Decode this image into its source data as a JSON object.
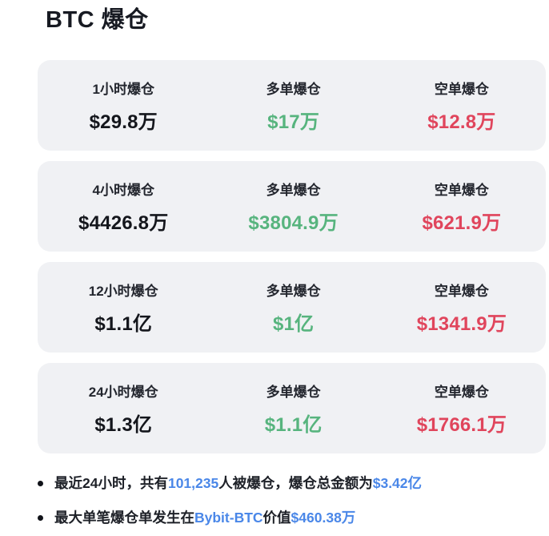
{
  "page": {
    "title": "BTC 爆仓"
  },
  "colors": {
    "long_green": "#57b47e",
    "short_red": "#e0455c",
    "link_blue": "#4a87e8",
    "card_background": "#f0f1f4",
    "text_dark": "#14161c"
  },
  "cards": [
    {
      "period": {
        "label": "1小时爆仓",
        "value": "$29.8万"
      },
      "long": {
        "label": "多单爆仓",
        "value": "$17万"
      },
      "short": {
        "label": "空单爆仓",
        "value": "$12.8万"
      }
    },
    {
      "period": {
        "label": "4小时爆仓",
        "value": "$4426.8万"
      },
      "long": {
        "label": "多单爆仓",
        "value": "$3804.9万"
      },
      "short": {
        "label": "空单爆仓",
        "value": "$621.9万"
      }
    },
    {
      "period": {
        "label": "12小时爆仓",
        "value": "$1.1亿"
      },
      "long": {
        "label": "多单爆仓",
        "value": "$1亿"
      },
      "short": {
        "label": "空单爆仓",
        "value": "$1341.9万"
      }
    },
    {
      "period": {
        "label": "24小时爆仓",
        "value": "$1.3亿"
      },
      "long": {
        "label": "多单爆仓",
        "value": "$1.1亿"
      },
      "short": {
        "label": "空单爆仓",
        "value": "$1766.1万"
      }
    }
  ],
  "bullets": [
    {
      "segments": [
        {
          "text": "最近24小时，共有",
          "style": "dark"
        },
        {
          "text": "101,235",
          "style": "blue"
        },
        {
          "text": "人被爆仓，爆仓总金额为",
          "style": "dark"
        },
        {
          "text": "$3.42亿",
          "style": "blue"
        }
      ]
    },
    {
      "segments": [
        {
          "text": "最大单笔爆仓单发生在",
          "style": "dark"
        },
        {
          "text": "Bybit-BTC",
          "style": "blue"
        },
        {
          "text": "价值 ",
          "style": "dark"
        },
        {
          "text": "$460.38万",
          "style": "blue"
        }
      ]
    }
  ]
}
